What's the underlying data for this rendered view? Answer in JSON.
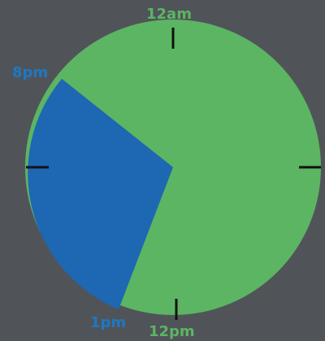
{
  "clock": {
    "labels": {
      "top": "12am",
      "bottom": "12pm",
      "start": "8pm",
      "end": "1pm"
    },
    "segment": {
      "from": "8pm",
      "to": "1pm"
    }
  },
  "colors": {
    "background": "#505459",
    "remainder": "#5cb563",
    "segment": "#1e67b3",
    "ticks": "#111111",
    "label_green": "#5cb563",
    "label_blue": "#1e78c2"
  }
}
